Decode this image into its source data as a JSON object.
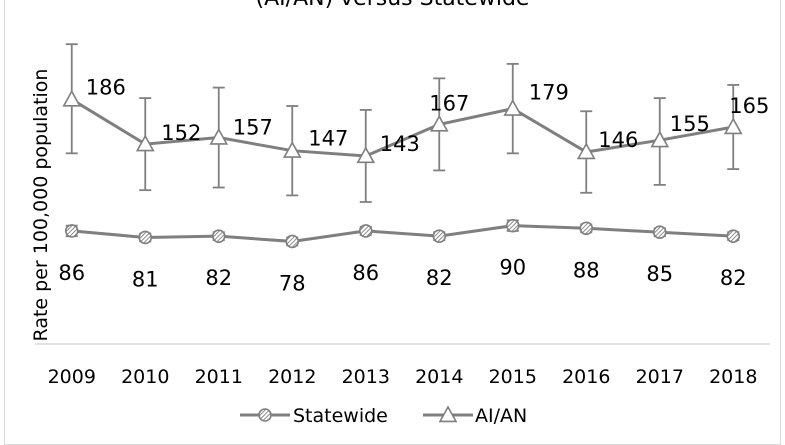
{
  "chart_data": {
    "type": "line",
    "title": "(AI/AN) versus Statewide",
    "ylabel": "Rate per 100,000 population",
    "xlabel": "",
    "ylim": [
      0,
      250
    ],
    "grid": false,
    "legend_position": "bottom",
    "categories": [
      "2009",
      "2010",
      "2011",
      "2012",
      "2013",
      "2014",
      "2015",
      "2016",
      "2017",
      "2018"
    ],
    "series": [
      {
        "name": "Statewide",
        "marker": "hatched-circle",
        "color": "#7f7f7f",
        "values": [
          86,
          81,
          82,
          78,
          86,
          82,
          90,
          88,
          85,
          82
        ],
        "error_low": [
          82,
          78,
          79,
          75,
          83,
          79,
          86,
          85,
          82,
          79
        ],
        "error_high": [
          90,
          84,
          85,
          81,
          89,
          85,
          94,
          91,
          88,
          85
        ]
      },
      {
        "name": "AI/AN",
        "marker": "triangle",
        "color": "#7f7f7f",
        "values": [
          186,
          152,
          157,
          147,
          143,
          167,
          179,
          146,
          155,
          165
        ],
        "error_low": [
          145,
          117,
          119,
          113,
          108,
          132,
          145,
          115,
          121,
          133
        ],
        "error_high": [
          228,
          187,
          195,
          181,
          178,
          202,
          213,
          177,
          187,
          197
        ]
      }
    ]
  }
}
